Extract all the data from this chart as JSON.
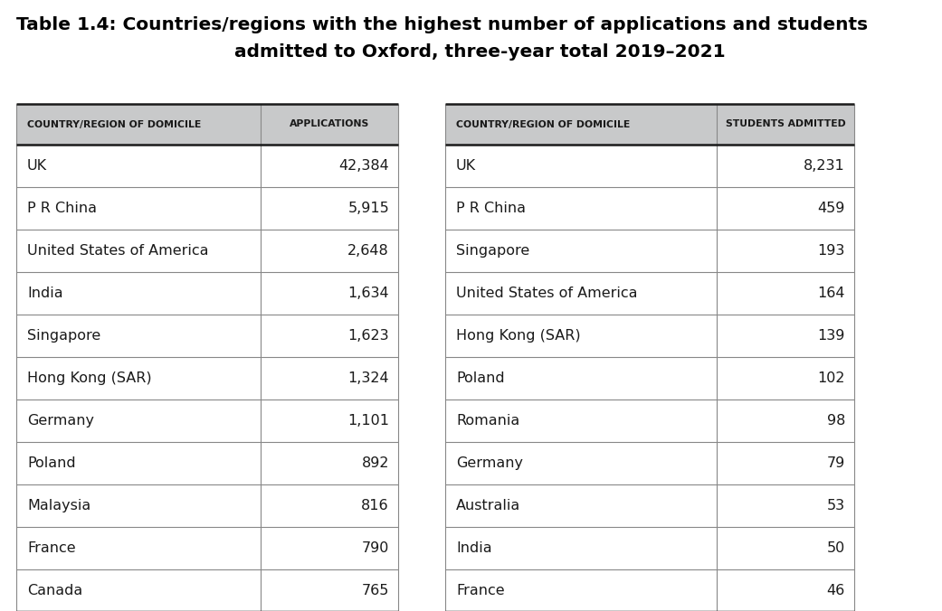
{
  "title_line1": "Table 1.4: Countries/regions with the highest number of applications and students",
  "title_line2": "admitted to Oxford, three-year total 2019–2021",
  "left_table": {
    "headers": [
      "COUNTRY/REGION OF DOMICILE",
      "APPLICATIONS"
    ],
    "rows": [
      [
        "UK",
        "42,384"
      ],
      [
        "P R China",
        "5,915"
      ],
      [
        "United States of America",
        "2,648"
      ],
      [
        "India",
        "1,634"
      ],
      [
        "Singapore",
        "1,623"
      ],
      [
        "Hong Kong (SAR)",
        "1,324"
      ],
      [
        "Germany",
        "1,101"
      ],
      [
        "Poland",
        "892"
      ],
      [
        "Malaysia",
        "816"
      ],
      [
        "France",
        "790"
      ],
      [
        "Canada",
        "765"
      ]
    ]
  },
  "right_table": {
    "headers": [
      "COUNTRY/REGION OF DOMICILE",
      "STUDENTS ADMITTED"
    ],
    "rows": [
      [
        "UK",
        "8,231"
      ],
      [
        "P R China",
        "459"
      ],
      [
        "Singapore",
        "193"
      ],
      [
        "United States of America",
        "164"
      ],
      [
        "Hong Kong (SAR)",
        "139"
      ],
      [
        "Poland",
        "102"
      ],
      [
        "Romania",
        "98"
      ],
      [
        "Germany",
        "79"
      ],
      [
        "Australia",
        "53"
      ],
      [
        "India",
        "50"
      ],
      [
        "France",
        "46"
      ]
    ]
  },
  "header_bg": "#c8c9ca",
  "row_bg": "#ffffff",
  "border_color_thick": "#1a1a1a",
  "border_color_thin": "#888888",
  "title_color": "#000000",
  "text_color": "#1a1a1a",
  "header_text_color": "#1a1a1a",
  "background_color": "#ffffff",
  "title_fontsize": 14.5,
  "header_fontsize": 7.8,
  "data_fontsize": 11.5
}
